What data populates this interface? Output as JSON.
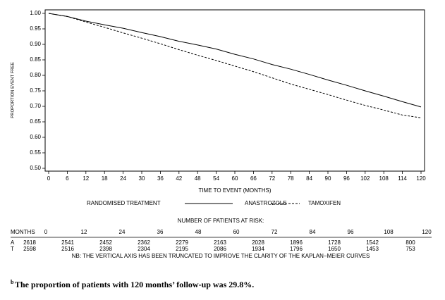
{
  "chart_data": {
    "type": "line",
    "x_label": "TIME TO EVENT (MONTHS)",
    "y_label": "PROPORTION EVENT FREE",
    "x": [
      0,
      6,
      12,
      18,
      24,
      30,
      36,
      42,
      48,
      54,
      60,
      66,
      72,
      78,
      84,
      90,
      96,
      102,
      108,
      114,
      120
    ],
    "series": [
      {
        "name": "ANASTROZOLE",
        "color": "#000000",
        "dash": "solid",
        "values": [
          1.0,
          0.99,
          0.975,
          0.963,
          0.952,
          0.938,
          0.925,
          0.91,
          0.898,
          0.885,
          0.868,
          0.853,
          0.835,
          0.82,
          0.803,
          0.785,
          0.768,
          0.75,
          0.733,
          0.715,
          0.698
        ]
      },
      {
        "name": "TAMOXIFEN",
        "color": "#000000",
        "dash": "dashed",
        "values": [
          1.0,
          0.99,
          0.972,
          0.955,
          0.937,
          0.92,
          0.902,
          0.883,
          0.865,
          0.848,
          0.83,
          0.812,
          0.792,
          0.772,
          0.755,
          0.738,
          0.72,
          0.703,
          0.688,
          0.672,
          0.663
        ]
      }
    ],
    "xlim": [
      0,
      120
    ],
    "ylim": [
      0.5,
      1.0
    ],
    "xticks": [
      0,
      6,
      12,
      18,
      24,
      30,
      36,
      42,
      48,
      54,
      60,
      66,
      72,
      78,
      84,
      90,
      96,
      102,
      108,
      114,
      120
    ],
    "yticks": [
      {
        "value": 0.5,
        "label": "0.50"
      },
      0.55,
      {
        "value": 0.6,
        "label": "0.60"
      },
      0.65,
      {
        "value": 0.7,
        "label": "0.70"
      },
      0.75,
      {
        "value": 0.8,
        "label": "0.80"
      },
      0.85,
      {
        "value": 0.9,
        "label": "0.90"
      },
      0.95,
      {
        "value": 1.0,
        "label": "1.00"
      }
    ],
    "legend_title": "RANDOMISED TREATMENT"
  },
  "risk_table": {
    "title": "NUMBER OF PATIENTS AT RISK:",
    "header_label": "MONTHS",
    "months": [
      0,
      12,
      24,
      36,
      48,
      60,
      72,
      84,
      96,
      108,
      120
    ],
    "rows": [
      {
        "label": "A",
        "values": [
          2618,
          2541,
          2452,
          2362,
          2279,
          2163,
          2028,
          1896,
          1728,
          1542,
          800
        ]
      },
      {
        "label": "T",
        "values": [
          2598,
          2516,
          2398,
          2304,
          2195,
          2086,
          1934,
          1796,
          1650,
          1453,
          753
        ]
      }
    ],
    "note": "NB: THE VERTICAL AXIS HAS BEEN TRUNCATED TO IMPROVE THE CLARITY OF THE KAPLAN−MEIER CURVES"
  },
  "footnote": {
    "marker": "b",
    "text": "The proportion of patients with 120 months’ follow-up was 29.8%."
  }
}
